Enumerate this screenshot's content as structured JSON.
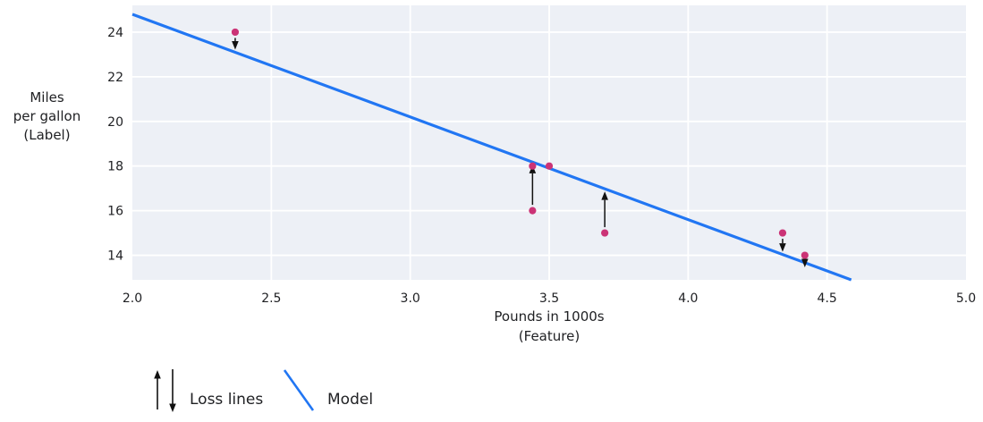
{
  "figure": {
    "ylabel_lines": [
      "Miles",
      "per gallon",
      "(Label)"
    ],
    "xlabel_lines": [
      "Pounds in 1000s",
      "(Feature)"
    ]
  },
  "legend": {
    "loss_label": "Loss lines",
    "model_label": "Model"
  },
  "chart_data": {
    "type": "scatter",
    "title": "",
    "xlabel": "Pounds in 1000s (Feature)",
    "ylabel": "Miles per gallon (Label)",
    "xlim": [
      2.0,
      5.0
    ],
    "ylim": [
      12.9,
      25.2
    ],
    "x_ticks": [
      2.0,
      2.5,
      3.0,
      3.5,
      4.0,
      4.5,
      5.0
    ],
    "x_tick_labels": [
      "2.0",
      "2.5",
      "3.0",
      "3.5",
      "4.0",
      "4.5",
      "5.0"
    ],
    "y_ticks": [
      14,
      16,
      18,
      20,
      22,
      24
    ],
    "y_tick_labels": [
      "14",
      "16",
      "18",
      "20",
      "22",
      "24"
    ],
    "grid": true,
    "points": [
      {
        "x": 2.37,
        "y": 24,
        "loss_arrow": "down"
      },
      {
        "x": 3.44,
        "y": 18,
        "loss_arrow": null
      },
      {
        "x": 3.5,
        "y": 18,
        "loss_arrow": null
      },
      {
        "x": 3.44,
        "y": 16,
        "loss_arrow": "up"
      },
      {
        "x": 3.7,
        "y": 15,
        "loss_arrow": "up"
      },
      {
        "x": 4.34,
        "y": 15,
        "loss_arrow": "down"
      },
      {
        "x": 4.42,
        "y": 14,
        "loss_arrow": "down"
      }
    ],
    "model_line": {
      "intercept": 34,
      "slope": -4.6
    },
    "legend_entries": [
      {
        "label": "Loss lines",
        "symbol": "arrows"
      },
      {
        "label": "Model",
        "symbol": "line"
      }
    ],
    "colors": {
      "point": "#cb3376",
      "model_line": "#2176f3",
      "loss_arrow": "#111111",
      "plot_bg": "#edf0f6",
      "grid": "#ffffff",
      "text": "#202124"
    }
  }
}
